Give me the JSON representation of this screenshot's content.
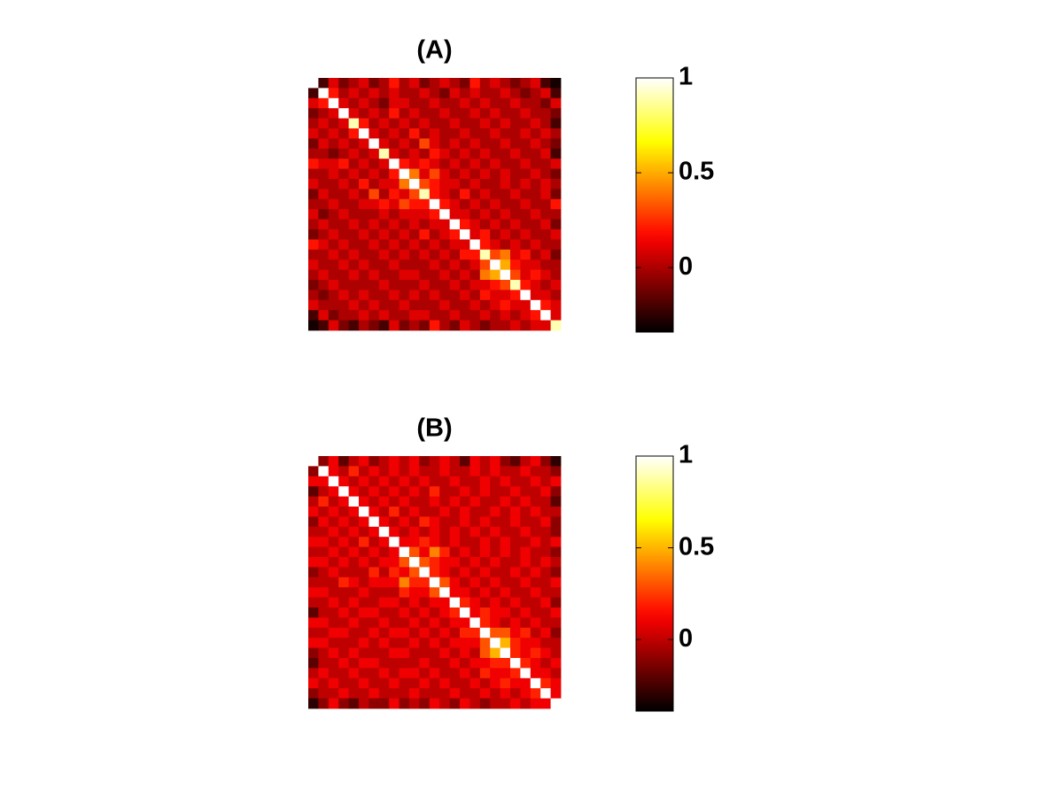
{
  "chart_data": [
    {
      "type": "heatmap",
      "title": "(A)",
      "colormap": "hot",
      "zlim": [
        -0.34,
        1
      ],
      "colorbar_ticks": [
        0,
        0.5,
        1
      ],
      "z": [
        [
          1,
          -0.2,
          0.1,
          -0.1,
          0,
          0.1,
          -0.1,
          0,
          0.2,
          0,
          0.1,
          -0.1,
          0,
          0.1,
          0,
          -0.1,
          0.2,
          0,
          0.1,
          0,
          -0.1,
          0,
          0.1,
          -0.2,
          -0.3
        ],
        [
          -0.2,
          1,
          0.2,
          0,
          0.1,
          0,
          0.1,
          0,
          0.1,
          0,
          0,
          0.1,
          0,
          -0.1,
          0.1,
          0,
          0.1,
          0,
          0,
          0.1,
          0,
          -0.1,
          0,
          0.1,
          -0.2
        ],
        [
          0.1,
          0.2,
          1,
          0.1,
          0,
          0.1,
          0,
          -0.1,
          0.1,
          0.1,
          0,
          0,
          0.1,
          0,
          0,
          0.1,
          0,
          0.1,
          0,
          0,
          0.1,
          0,
          0,
          -0.1,
          0.1
        ],
        [
          -0.1,
          0,
          0.1,
          1,
          0.1,
          0,
          0.1,
          0,
          0.2,
          0,
          0.1,
          0,
          0,
          0.1,
          0,
          0,
          0.1,
          0,
          0.1,
          0,
          0,
          0.1,
          0,
          0,
          -0.1
        ],
        [
          0,
          0.1,
          0,
          0.1,
          0.9,
          0.2,
          0,
          0.1,
          0,
          0.1,
          0,
          0.1,
          0,
          0,
          0.1,
          0,
          0,
          0.1,
          0,
          0.1,
          0,
          0,
          0.1,
          0,
          -0.2
        ],
        [
          0.1,
          0,
          0.1,
          0,
          0.2,
          1,
          0.1,
          0,
          0.1,
          0,
          0.2,
          0,
          0.1,
          0,
          0,
          0.1,
          0,
          0,
          0.1,
          0,
          0,
          0.1,
          0,
          0.1,
          0
        ],
        [
          -0.1,
          0.1,
          0,
          0.1,
          0,
          0.1,
          1,
          0.1,
          0,
          0.1,
          0,
          0.3,
          0.1,
          0,
          0.1,
          0,
          0.1,
          0,
          0,
          0.1,
          0,
          0,
          0.1,
          0,
          -0.1
        ],
        [
          0,
          0,
          -0.1,
          0,
          0.1,
          0,
          0.1,
          0.9,
          0.1,
          0,
          0.1,
          0,
          0.2,
          0.1,
          0,
          0.1,
          0,
          0.1,
          0,
          0,
          0.1,
          0,
          0,
          0.1,
          -0.2
        ],
        [
          0.2,
          0.1,
          0.1,
          0.2,
          0,
          0.1,
          0,
          0.1,
          1,
          0.2,
          0.1,
          0.2,
          0.1,
          0,
          0.1,
          0,
          0.1,
          0,
          0.1,
          0,
          0,
          0.1,
          0,
          0,
          0.1
        ],
        [
          0,
          0,
          0.1,
          0,
          0.1,
          0,
          0.1,
          0,
          0.2,
          1,
          0.4,
          0.1,
          0.3,
          0.1,
          0,
          0.1,
          0,
          0.1,
          0,
          0.1,
          0,
          0,
          0.1,
          0,
          -0.1
        ],
        [
          0.1,
          0,
          0,
          0.1,
          0,
          0.2,
          0,
          0.1,
          0.1,
          0.4,
          1,
          0.3,
          0.2,
          0.1,
          0.1,
          0,
          0.1,
          0,
          0,
          0.1,
          0,
          0.1,
          0,
          0.1,
          0
        ],
        [
          -0.1,
          0.1,
          0,
          0,
          0.1,
          0,
          0.3,
          0,
          0.2,
          0.1,
          0.3,
          0.9,
          0.2,
          0.1,
          0,
          0.2,
          0,
          0.1,
          0,
          0,
          0.1,
          0,
          0,
          0.1,
          -0.1
        ],
        [
          0,
          0,
          0.1,
          0,
          0,
          0.1,
          0.1,
          0.2,
          0.1,
          0.3,
          0.2,
          0.2,
          1,
          0.2,
          0.1,
          0,
          0.1,
          0,
          0.1,
          0,
          0,
          0.1,
          0,
          0,
          0.2
        ],
        [
          0.1,
          -0.1,
          0,
          0.1,
          0,
          0,
          0,
          0.1,
          0,
          0.1,
          0.1,
          0.1,
          0.2,
          1,
          0.1,
          0.1,
          0,
          0.1,
          0,
          0.1,
          0,
          0,
          0.1,
          0,
          0
        ],
        [
          0,
          0.1,
          0,
          0,
          0.1,
          0,
          0.1,
          0,
          0.1,
          0,
          0.1,
          0,
          0.1,
          0.1,
          1,
          0.2,
          0.1,
          0,
          0.1,
          0,
          0.1,
          0,
          0,
          0.1,
          -0.1
        ],
        [
          -0.1,
          0,
          0.1,
          0,
          0,
          0.1,
          0,
          0.1,
          0,
          0.1,
          0,
          0.2,
          0,
          0.1,
          0.2,
          1,
          0.1,
          0.2,
          0,
          0.1,
          0,
          0.1,
          0,
          0,
          0.1
        ],
        [
          0.2,
          0.1,
          0,
          0.1,
          0,
          0,
          0.1,
          0,
          0.1,
          0,
          0.1,
          0,
          0.1,
          0,
          0.1,
          0.1,
          1,
          0.2,
          0.1,
          0,
          0.1,
          0,
          0.1,
          0,
          0
        ],
        [
          0,
          0,
          0.1,
          0,
          0.1,
          0,
          0,
          0.1,
          0,
          0.1,
          0,
          0.1,
          0,
          0.1,
          0,
          0.2,
          0.2,
          0.9,
          0.3,
          0.4,
          0.1,
          0.2,
          0,
          0.1,
          -0.1
        ],
        [
          0.1,
          0,
          0,
          0.1,
          0,
          0.1,
          0,
          0,
          0.1,
          0,
          0,
          0,
          0.1,
          0,
          0.1,
          0,
          0.1,
          0.3,
          1,
          0.5,
          0.2,
          0.1,
          0.1,
          0,
          0
        ],
        [
          0,
          0.1,
          0,
          0,
          0.1,
          0,
          0.1,
          0,
          0,
          0.1,
          0.1,
          0,
          0,
          0.1,
          0,
          0.1,
          0,
          0.4,
          0.5,
          1,
          0.3,
          0.1,
          0.2,
          0.1,
          0
        ],
        [
          -0.1,
          0,
          0.1,
          0,
          0,
          0,
          0,
          0.1,
          0,
          0,
          0,
          0.1,
          0,
          0,
          0.1,
          0,
          0.1,
          0.1,
          0.2,
          0.3,
          0.9,
          0.2,
          0.1,
          0,
          0.1
        ],
        [
          0,
          -0.1,
          0,
          0.1,
          0,
          0.1,
          0,
          0,
          0.1,
          0,
          0.1,
          0,
          0.1,
          0,
          0,
          0.1,
          0,
          0.2,
          0.1,
          0.1,
          0.2,
          1,
          0.1,
          0.1,
          0
        ],
        [
          0.1,
          0,
          0,
          0,
          0.1,
          0,
          0.1,
          0,
          0,
          0.1,
          0,
          0,
          0,
          0.1,
          0,
          0,
          0.1,
          0,
          0.1,
          0.2,
          0.1,
          0.1,
          1,
          0.2,
          0.1
        ],
        [
          -0.2,
          0.1,
          -0.1,
          0,
          0,
          0.1,
          0,
          0.1,
          0,
          0,
          0.1,
          0.1,
          0,
          0,
          0.1,
          0,
          0,
          0.1,
          0,
          0.1,
          0,
          0.1,
          0.2,
          1,
          0.1
        ],
        [
          -0.3,
          -0.2,
          0.1,
          -0.1,
          -0.2,
          0,
          -0.1,
          -0.2,
          0.1,
          -0.1,
          0,
          -0.1,
          0.2,
          0,
          -0.1,
          0.1,
          0,
          -0.1,
          0,
          0,
          0.1,
          0,
          0.1,
          0.1,
          0.9
        ]
      ]
    },
    {
      "type": "heatmap",
      "title": "(B)",
      "colormap": "hot",
      "zlim": [
        -0.39,
        1
      ],
      "colorbar_ticks": [
        0,
        0.5,
        1
      ],
      "z": [
        [
          1,
          -0.1,
          0.1,
          -0.2,
          0,
          0.1,
          -0.1,
          0,
          0.1,
          0,
          0.1,
          -0.1,
          0,
          0.1,
          0,
          -0.2,
          0.1,
          0,
          0.1,
          -0.1,
          -0.2,
          0,
          0.1,
          -0.1,
          -0.3
        ],
        [
          -0.1,
          1,
          0.1,
          0,
          0.2,
          0,
          0.1,
          0,
          0.1,
          0,
          0.1,
          0,
          0,
          0.1,
          0,
          0,
          0.1,
          0,
          0.1,
          0,
          0,
          0.1,
          0,
          0,
          -0.1
        ],
        [
          0.1,
          0.1,
          1,
          0.1,
          0,
          0.1,
          0,
          0.1,
          0,
          0.1,
          0,
          0.1,
          0,
          0,
          0.1,
          0,
          0,
          0.1,
          0,
          0.1,
          0,
          0,
          0.1,
          0,
          0.1
        ],
        [
          -0.2,
          0,
          0.1,
          1,
          0.1,
          0,
          0.1,
          0,
          0.1,
          0,
          0.1,
          0,
          0.2,
          0,
          0,
          0.1,
          0,
          0.1,
          0,
          0,
          0.1,
          0,
          0,
          0.1,
          -0.1
        ],
        [
          0,
          0.2,
          0,
          0.1,
          1,
          0.1,
          0,
          0.1,
          0,
          0.1,
          0,
          0,
          0.1,
          0,
          0.1,
          0,
          0.1,
          0,
          0,
          0.1,
          0,
          0.1,
          0,
          0,
          -0.2
        ],
        [
          0.1,
          0,
          0.1,
          0,
          0.1,
          1,
          0.1,
          0,
          0.2,
          0,
          0.1,
          0,
          0,
          0.1,
          0,
          0.1,
          0,
          0,
          0.1,
          0,
          0.1,
          0,
          0.1,
          0,
          0
        ],
        [
          -0.1,
          0.1,
          0,
          0.1,
          0,
          0.1,
          1,
          0.1,
          0,
          0.1,
          0,
          0.2,
          0.1,
          0,
          0,
          0.1,
          0,
          0.1,
          0,
          0,
          0.1,
          0,
          0,
          0.1,
          -0.1
        ],
        [
          0,
          0,
          0.1,
          0,
          0.1,
          0,
          0.1,
          1,
          0.1,
          0,
          0.1,
          0,
          0.1,
          0,
          0.1,
          0,
          0.1,
          0,
          0.1,
          0,
          0,
          0.1,
          0,
          0,
          -0.1
        ],
        [
          0.1,
          0.1,
          0,
          0.1,
          0,
          0.2,
          0,
          0.1,
          1,
          0.1,
          0.1,
          0.2,
          0.1,
          0,
          0.1,
          0,
          0,
          0.1,
          0,
          0.1,
          0,
          0,
          0.1,
          0,
          0.1
        ],
        [
          0,
          0,
          0.1,
          0,
          0.1,
          0,
          0.1,
          0,
          0.1,
          1,
          0.3,
          0.1,
          0.4,
          0.2,
          0,
          0.1,
          0,
          0.1,
          0,
          0.1,
          0,
          0.1,
          0,
          0,
          -0.1
        ],
        [
          0.1,
          0.1,
          0,
          0.1,
          0,
          0.1,
          0,
          0.1,
          0.1,
          0.3,
          1,
          0.3,
          0.2,
          0.1,
          0.1,
          0,
          0.1,
          0,
          0.1,
          0,
          0,
          0.1,
          0,
          0.1,
          0
        ],
        [
          -0.1,
          0,
          0.1,
          0,
          0,
          0,
          0.2,
          0,
          0.2,
          0.1,
          0.3,
          1,
          0.2,
          0.1,
          0,
          0.1,
          0,
          0.1,
          0,
          0,
          0.1,
          0,
          0.1,
          0,
          -0.1
        ],
        [
          0,
          0,
          0,
          0.2,
          0.1,
          0,
          0.1,
          0.1,
          0.1,
          0.4,
          0.2,
          0.2,
          1,
          0.3,
          0.1,
          0,
          0.1,
          0,
          0.1,
          0,
          0,
          0.1,
          0,
          0,
          0.1
        ],
        [
          0.1,
          0.1,
          0,
          0,
          0,
          0.1,
          0,
          0,
          0,
          0.2,
          0.1,
          0.1,
          0.3,
          1,
          0.1,
          0.1,
          0,
          0.1,
          0,
          0.1,
          0,
          0,
          0.1,
          0,
          0
        ],
        [
          0,
          0,
          0.1,
          0,
          0.1,
          0,
          0,
          0.1,
          0.1,
          0,
          0.1,
          0,
          0.1,
          0.1,
          1,
          0.2,
          0.1,
          0,
          0.1,
          0,
          0.1,
          0,
          0,
          0.1,
          -0.1
        ],
        [
          -0.2,
          0,
          0,
          0.1,
          0,
          0.1,
          0.1,
          0,
          0,
          0.1,
          0,
          0.1,
          0,
          0.1,
          0.2,
          1,
          0.1,
          0.2,
          0.1,
          0.1,
          0,
          0.1,
          0,
          0,
          0.1
        ],
        [
          0.1,
          0.1,
          0,
          0,
          0.1,
          0,
          0,
          0.1,
          0,
          0,
          0.1,
          0,
          0.1,
          0,
          0.1,
          0.1,
          1,
          0.2,
          0.1,
          0,
          0.1,
          0,
          0.1,
          0,
          0
        ],
        [
          0,
          0,
          0.1,
          0.1,
          0,
          0,
          0.1,
          0,
          0.1,
          0.1,
          0,
          0.1,
          0,
          0.1,
          0,
          0.2,
          0.2,
          1,
          0.3,
          0.3,
          0.1,
          0.2,
          0,
          0.1,
          -0.1
        ],
        [
          0.1,
          0.1,
          0,
          0,
          0,
          0.1,
          0,
          0.1,
          0,
          0,
          0.1,
          0,
          0.1,
          0,
          0.1,
          0.1,
          0.1,
          0.3,
          1,
          0.5,
          0.2,
          0.1,
          0.1,
          0,
          0
        ],
        [
          -0.1,
          0,
          0.1,
          0,
          0.1,
          0,
          0,
          0,
          0.1,
          0.1,
          0,
          0,
          0,
          0.1,
          0,
          0.1,
          0,
          0.3,
          0.5,
          1,
          0.2,
          0.1,
          0.2,
          0.1,
          0
        ],
        [
          -0.2,
          0,
          0,
          0.1,
          0,
          0.1,
          0.1,
          0,
          0,
          0,
          0,
          0.1,
          0,
          0,
          0.1,
          0,
          0.1,
          0.1,
          0.2,
          0.2,
          1,
          0.2,
          0.1,
          0,
          0.1
        ],
        [
          0,
          0.1,
          0,
          0,
          0.1,
          0,
          0,
          0.1,
          0,
          0.1,
          0.1,
          0,
          0.1,
          0,
          0,
          0.1,
          0,
          0.2,
          0.1,
          0.1,
          0.2,
          1,
          0.1,
          0.1,
          0
        ],
        [
          0.1,
          0,
          0.1,
          0,
          0,
          0.1,
          0,
          0,
          0.1,
          0,
          0,
          0.1,
          0,
          0.1,
          0,
          0,
          0.1,
          0,
          0.1,
          0.2,
          0.1,
          0.1,
          1,
          0.2,
          0.1
        ],
        [
          -0.1,
          0,
          0,
          0.1,
          0,
          0,
          0.1,
          0,
          0,
          0,
          0.1,
          0,
          0,
          0,
          0.1,
          0,
          0,
          0.1,
          0,
          0.1,
          0,
          0.1,
          0.2,
          1,
          0.1
        ],
        [
          -0.3,
          -0.1,
          0.1,
          -0.1,
          -0.2,
          0,
          -0.1,
          -0.1,
          0.1,
          -0.1,
          0,
          -0.1,
          0.1,
          0,
          -0.1,
          0.1,
          0,
          -0.1,
          0,
          0,
          0.1,
          0,
          0.1,
          0.1,
          1
        ]
      ]
    }
  ]
}
